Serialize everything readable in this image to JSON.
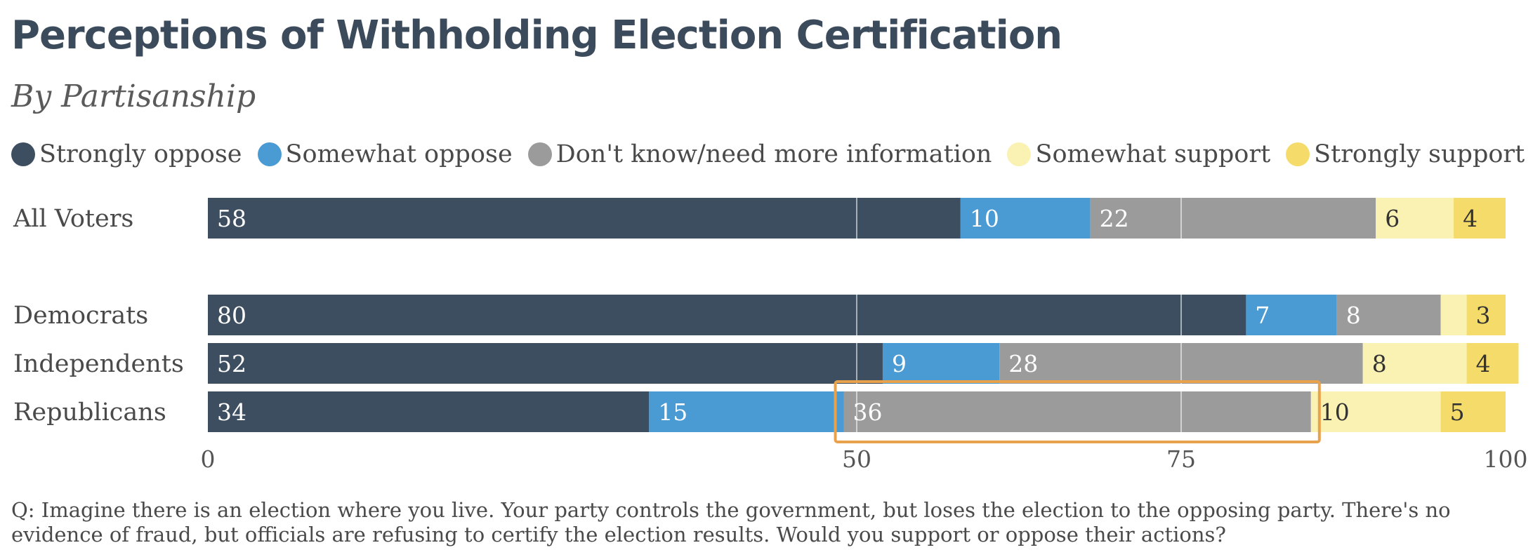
{
  "header": {
    "title": "Perceptions of Withholding Election Certification",
    "subtitle": "By Partisanship"
  },
  "footnote": "Q: Imagine there is an election where you live. Your party controls the government, but loses the election to the opposing party. There's no evidence of fraud, but officials are refusing to certify the election results. Would you support or oppose their actions?",
  "colors": {
    "Strongly oppose": "#3d4e61",
    "Somewhat oppose": "#4a9bd4",
    "Don't know/need more information": "#9b9b9b",
    "Somewhat support": "#f9f2b3",
    "Strongly support": "#f5dc6a",
    "highlight": "#e8a24c"
  },
  "chart_data": {
    "type": "bar",
    "orientation": "horizontal",
    "stacked": true,
    "categories": [
      "All Voters",
      "Democrats",
      "Independents",
      "Republicans"
    ],
    "series": [
      {
        "name": "Strongly oppose",
        "values": [
          58,
          80,
          52,
          34
        ]
      },
      {
        "name": "Somewhat oppose",
        "values": [
          10,
          7,
          9,
          15
        ]
      },
      {
        "name": "Don't know/need more information",
        "values": [
          22,
          8,
          28,
          36
        ]
      },
      {
        "name": "Somewhat support",
        "values": [
          6,
          2,
          8,
          10
        ]
      },
      {
        "name": "Strongly support",
        "values": [
          4,
          3,
          4,
          5
        ]
      }
    ],
    "labels": [
      [
        "58",
        "10",
        "22",
        "6",
        "4"
      ],
      [
        "80",
        "7",
        "8",
        "",
        "3"
      ],
      [
        "52",
        "9",
        "28",
        "8",
        "4"
      ],
      [
        "34",
        "15",
        "36",
        "10",
        "5"
      ]
    ],
    "xticks": [
      0,
      50,
      75,
      100
    ],
    "xtick_labels": [
      "0",
      "50",
      "75",
      "100"
    ],
    "xlim": [
      0,
      100
    ],
    "gridlines": [
      50,
      75
    ],
    "legend_position": "top",
    "highlight": {
      "category": "Republicans",
      "series": "Don't know/need more information",
      "color": "orange"
    }
  }
}
